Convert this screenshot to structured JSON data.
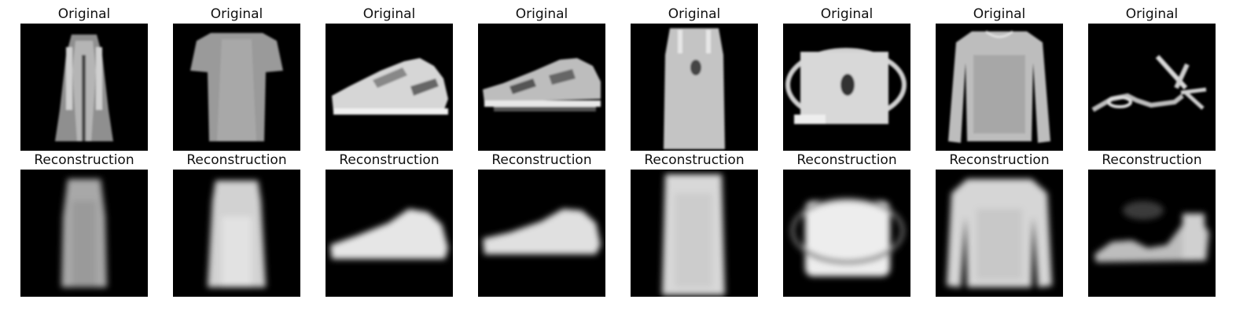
{
  "rows": [
    {
      "label": "Original",
      "images": [
        {
          "content": "dress-original"
        },
        {
          "content": "tshirt-original"
        },
        {
          "content": "sneaker-original"
        },
        {
          "content": "sneaker2-original"
        },
        {
          "content": "dress2-original"
        },
        {
          "content": "bag-original"
        },
        {
          "content": "pullover-original"
        },
        {
          "content": "sandal-original"
        }
      ]
    },
    {
      "label": "Reconstruction",
      "images": [
        {
          "content": "dress-reconstruction"
        },
        {
          "content": "tshirt-reconstruction"
        },
        {
          "content": "sneaker-reconstruction"
        },
        {
          "content": "sneaker2-reconstruction"
        },
        {
          "content": "dress2-reconstruction"
        },
        {
          "content": "bag-reconstruction"
        },
        {
          "content": "pullover-reconstruction"
        },
        {
          "content": "sandal-reconstruction"
        }
      ]
    }
  ]
}
